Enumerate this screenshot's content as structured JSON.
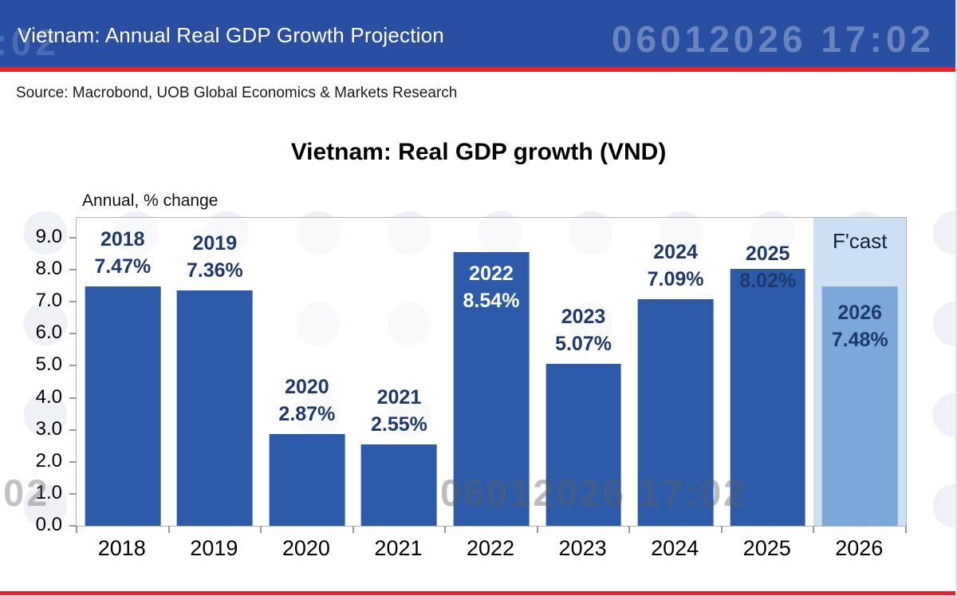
{
  "header": {
    "title": "Vietnam: Annual Real GDP Growth Projection"
  },
  "source": {
    "text": "Source: Macrobond, UOB Global Economics & Markets Research"
  },
  "watermark": {
    "text": "06012026 17:02"
  },
  "theme": {
    "header_blue": "#2a4fa2",
    "red": "#e8222d",
    "bar": "#2d5ba9",
    "bar_forecast": "#7ba7da",
    "band": "#cddff2",
    "label_navy": "#1e3a6d",
    "inside_label": "#ffffff"
  },
  "chart_data": {
    "type": "bar",
    "title": "Vietnam: Real GDP growth (VND)",
    "ylabel": "Annual, % change",
    "xlabel": "",
    "ylim": [
      0,
      9
    ],
    "ytick_step": 1.0,
    "grid": false,
    "legend_position": "none",
    "categories": [
      "2018",
      "2019",
      "2020",
      "2021",
      "2022",
      "2023",
      "2024",
      "2025",
      "2026"
    ],
    "values": [
      7.47,
      7.36,
      2.87,
      2.55,
      8.54,
      5.07,
      7.09,
      8.02,
      7.48
    ],
    "bar_labels": [
      "7.47%",
      "7.36%",
      "2.87%",
      "2.55%",
      "8.54%",
      "5.07%",
      "7.09%",
      "8.02%",
      "7.48%"
    ],
    "label_styles": [
      "above",
      "above",
      "above",
      "above",
      "inside",
      "above",
      "above",
      "overlap",
      "inside_dark"
    ],
    "ytick_labels": [
      "0.0",
      "1.0",
      "2.0",
      "3.0",
      "4.0",
      "5.0",
      "6.0",
      "7.0",
      "8.0",
      "9.0"
    ],
    "forecast": {
      "label": "F'cast",
      "category": "2026",
      "value": 7.48
    }
  }
}
